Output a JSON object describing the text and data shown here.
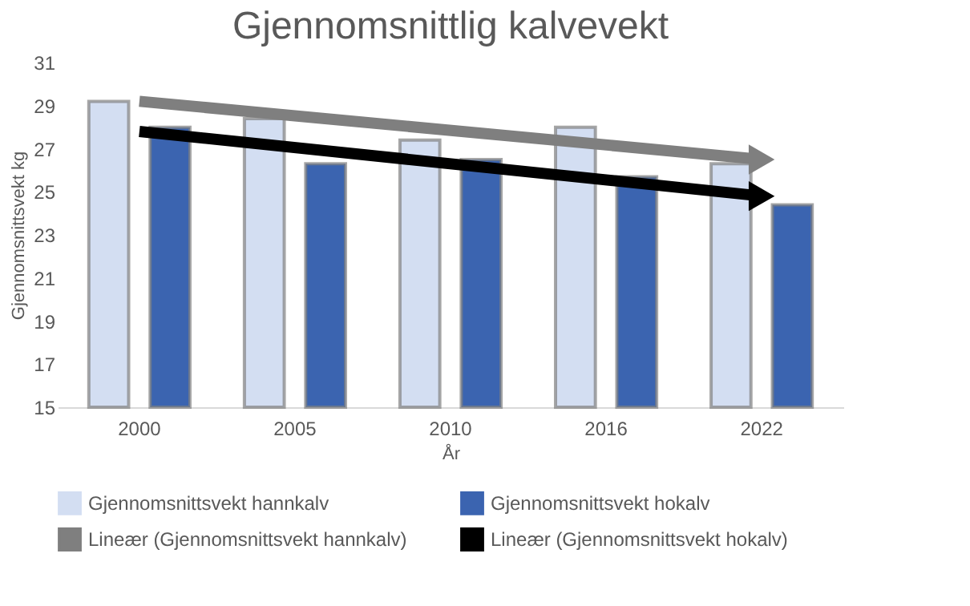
{
  "chart_data": {
    "type": "bar",
    "title": "Gjennomsnittlig kalvevekt",
    "xlabel": "År",
    "ylabel": "Gjennomsnittsvekt kg",
    "categories": [
      "2000",
      "2005",
      "2010",
      "2016",
      "2022"
    ],
    "series": [
      {
        "name": "Gjennomsnittsvekt hannkalv",
        "color": "#d3def2",
        "values": [
          29.2,
          28.4,
          27.4,
          28.0,
          26.3
        ]
      },
      {
        "name": "Gjennomsnittsvekt hokalv",
        "color": "#3b64b0",
        "values": [
          28.0,
          26.3,
          26.5,
          25.7,
          24.4
        ]
      },
      {
        "name": "Lineær (Gjennomsnittsvekt hannkalv)",
        "type": "line",
        "color": "#7f7f7f",
        "values": [
          29.2,
          null,
          null,
          null,
          26.5
        ]
      },
      {
        "name": "Lineær (Gjennomsnittsvekt hokalv)",
        "type": "line",
        "color": "#000000",
        "values": [
          27.8,
          null,
          null,
          null,
          24.8
        ]
      }
    ],
    "ylim": [
      15,
      31
    ],
    "yticks": [
      15,
      17,
      19,
      21,
      23,
      25,
      27,
      29,
      31
    ],
    "grid": false,
    "legend": "bottom"
  }
}
